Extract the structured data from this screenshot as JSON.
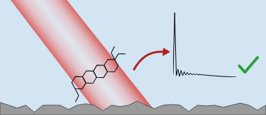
{
  "chart_data": {
    "type": "line",
    "x": [
      0,
      1,
      2,
      3,
      4,
      5,
      6,
      7,
      8,
      9,
      10,
      11,
      12,
      13,
      14,
      15,
      16,
      17,
      18,
      19,
      20,
      22,
      24,
      26,
      28,
      30,
      32,
      34,
      36,
      38,
      40
    ],
    "values": [
      0.06,
      1.0,
      0.04,
      0.14,
      0.03,
      0.12,
      0.04,
      0.1,
      0.05,
      0.09,
      0.05,
      0.08,
      0.05,
      0.07,
      0.055,
      0.065,
      0.055,
      0.06,
      0.05,
      0.055,
      0.05,
      0.045,
      0.042,
      0.038,
      0.035,
      0.03,
      0.028,
      0.025,
      0.022,
      0.02,
      0.018
    ],
    "color": "#000000",
    "tick_labels": false
  }
}
